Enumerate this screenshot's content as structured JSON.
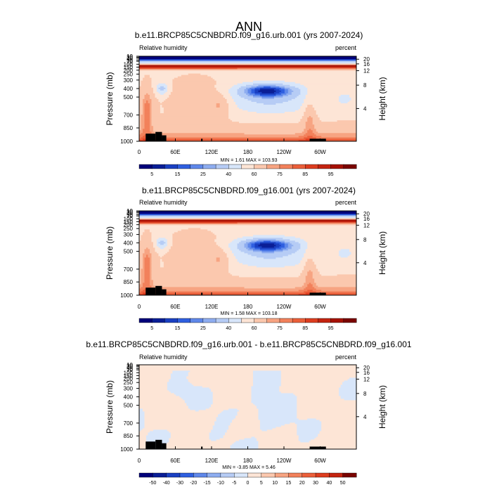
{
  "figure": {
    "title": "ANN"
  },
  "chart_data": [
    {
      "type": "heatmap",
      "title": "b.e11.BRCP85C5CNBDRD.f09_g16.urb.001 (yrs 2007-2024)",
      "left_string": "Relative humidity",
      "right_string": "percent",
      "xlabel": "",
      "ylabel": "Pressure (mb)",
      "y2label": "Height (km)",
      "x_ticks": [
        "0",
        "60E",
        "120E",
        "180",
        "120W",
        "60W"
      ],
      "y_ticks": [
        "1000",
        "850",
        "700",
        "500",
        "400",
        "300",
        "250",
        "200",
        "150",
        "100",
        "70",
        "50",
        "30",
        "20",
        "10"
      ],
      "y2_ticks": [
        "4",
        "8",
        "12",
        "16",
        "20"
      ],
      "stats": "MIN =   1.61  MAX = 103.93",
      "field": "mean",
      "colorbar": {
        "labels": [
          "5",
          "15",
          "25",
          "40",
          "60",
          "75",
          "85",
          "95"
        ],
        "levels": [
          1,
          5,
          10,
          15,
          20,
          25,
          30,
          40,
          50,
          60,
          70,
          75,
          80,
          85,
          90,
          95,
          100
        ],
        "colors": [
          "#00007a",
          "#0a1e96",
          "#1a40c2",
          "#2f5fe0",
          "#5f88ea",
          "#8eadf0",
          "#b6ccf5",
          "#d8e6fa",
          "#fde5d6",
          "#fbc8ae",
          "#f7a482",
          "#f2815b",
          "#eb5f3a",
          "#dd3d1f",
          "#c42410",
          "#a61104",
          "#7a0400"
        ]
      }
    },
    {
      "type": "heatmap",
      "title": "b.e11.BRCP85C5CNBDRD.f09_g16.001 (yrs 2007-2024)",
      "left_string": "Relative humidity",
      "right_string": "percent",
      "xlabel": "",
      "ylabel": "Pressure (mb)",
      "y2label": "Height (km)",
      "x_ticks": [
        "0",
        "60E",
        "120E",
        "180",
        "120W",
        "60W"
      ],
      "y_ticks": [
        "1000",
        "850",
        "700",
        "500",
        "400",
        "300",
        "250",
        "200",
        "150",
        "100",
        "70",
        "50",
        "30",
        "20",
        "10"
      ],
      "y2_ticks": [
        "4",
        "8",
        "12",
        "16",
        "20"
      ],
      "stats": "MIN =   1.58  MAX = 103.18",
      "field": "mean",
      "colorbar": {
        "labels": [
          "5",
          "15",
          "25",
          "40",
          "60",
          "75",
          "85",
          "95"
        ],
        "levels": [
          1,
          5,
          10,
          15,
          20,
          25,
          30,
          40,
          50,
          60,
          70,
          75,
          80,
          85,
          90,
          95,
          100
        ],
        "colors": [
          "#00007a",
          "#0a1e96",
          "#1a40c2",
          "#2f5fe0",
          "#5f88ea",
          "#8eadf0",
          "#b6ccf5",
          "#d8e6fa",
          "#fde5d6",
          "#fbc8ae",
          "#f7a482",
          "#f2815b",
          "#eb5f3a",
          "#dd3d1f",
          "#c42410",
          "#a61104",
          "#7a0400"
        ]
      }
    },
    {
      "type": "heatmap",
      "title": "b.e11.BRCP85C5CNBDRD.f09_g16.urb.001 - b.e11.BRCP85C5CNBDRD.f09_g16.001",
      "left_string": "Relative humidity",
      "right_string": "percent",
      "xlabel": "",
      "ylabel": "Pressure (mb)",
      "y2label": "Height (km)",
      "x_ticks": [
        "0",
        "60E",
        "120E",
        "180",
        "120W",
        "60W"
      ],
      "y_ticks": [
        "1000",
        "850",
        "700",
        "500",
        "400",
        "300",
        "250",
        "200",
        "150",
        "100",
        "70",
        "50",
        "30",
        "20",
        "10"
      ],
      "y2_ticks": [
        "4",
        "8",
        "12",
        "16",
        "20"
      ],
      "stats": "MIN =  -3.85  MAX =   5.46",
      "field": "diff",
      "colorbar": {
        "labels": [
          "-50",
          "-40",
          "-30",
          "-20",
          "-15",
          "-10",
          "-5",
          "0",
          "5",
          "10",
          "15",
          "20",
          "30",
          "40",
          "50"
        ],
        "colors": [
          "#00007a",
          "#0a1e96",
          "#1a40c2",
          "#2f5fe0",
          "#5f88ea",
          "#8eadf0",
          "#b6ccf5",
          "#d8e6fa",
          "#fde5d6",
          "#fbc8ae",
          "#f7a482",
          "#f2815b",
          "#eb5f3a",
          "#dd3d1f",
          "#c42410",
          "#7a0400"
        ]
      }
    }
  ]
}
